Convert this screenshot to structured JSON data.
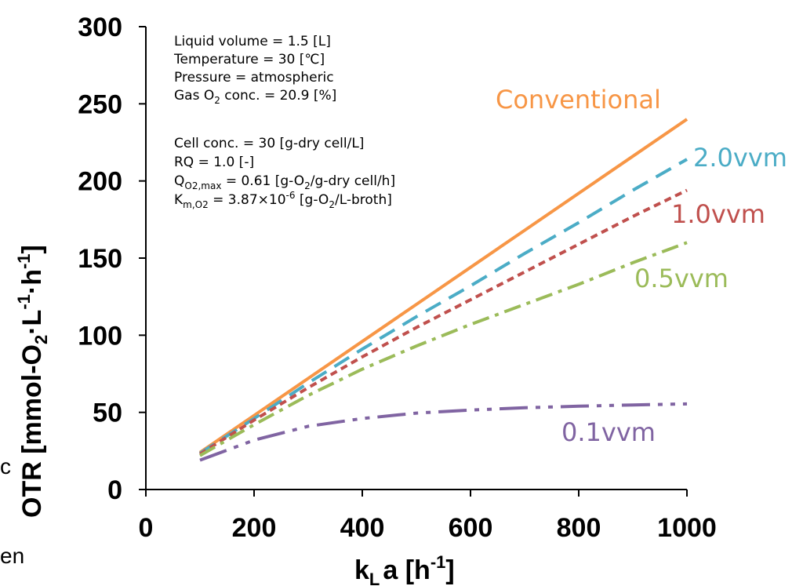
{
  "chart_data": {
    "type": "line",
    "xlabel": "k_L a [h⁻¹]",
    "xlabel_main": "k",
    "xlabel_sub": "L",
    "xlabel_rest": "a [h",
    "xlabel_sup": "-1",
    "xlabel_end": "]",
    "ylabel": "OTR [mmol-O₂·L⁻¹·h⁻¹]",
    "ylabel_parts": {
      "a": "OTR [mmol-O",
      "sub": "2",
      "b": "·L",
      "sup1": "-1",
      "c": "·h",
      "sup2": "-1",
      "d": "]"
    },
    "xlim": [
      0,
      1000
    ],
    "ylim": [
      0,
      300
    ],
    "x_ticks": [
      "0",
      "200",
      "400",
      "600",
      "800",
      "1000"
    ],
    "y_ticks": [
      "0",
      "50",
      "100",
      "150",
      "200",
      "250",
      "300"
    ],
    "grid": false,
    "series": [
      {
        "name": "Conventional",
        "color": "#f79646",
        "dash": "solid",
        "x": [
          100,
          200,
          300,
          400,
          500,
          600,
          700,
          800,
          900,
          1000
        ],
        "y": [
          24,
          48,
          72,
          96,
          120,
          144,
          168,
          192,
          216,
          240
        ]
      },
      {
        "name": "2.0vvm",
        "color": "#4bacc6",
        "dash": "dash",
        "x": [
          100,
          200,
          300,
          400,
          500,
          600,
          700,
          800,
          900,
          1000
        ],
        "y": [
          23.5,
          46,
          69,
          91,
          112,
          132,
          153,
          173,
          194,
          214
        ]
      },
      {
        "name": "1.0vvm",
        "color": "#c0504d",
        "dash": "dot",
        "x": [
          100,
          200,
          300,
          400,
          500,
          600,
          700,
          800,
          900,
          1000
        ],
        "y": [
          23,
          45,
          66,
          86,
          105,
          123,
          141,
          159,
          177,
          194
        ]
      },
      {
        "name": "0.5vvm",
        "color": "#9bbb59",
        "dash": "dashdot",
        "x": [
          100,
          200,
          300,
          400,
          500,
          600,
          700,
          800,
          900,
          1000
        ],
        "y": [
          22,
          42,
          61,
          78,
          93,
          107,
          120,
          133,
          147,
          160
        ]
      },
      {
        "name": "0.1vvm",
        "color": "#8064a2",
        "dash": "dashdotdot",
        "x": [
          100,
          200,
          300,
          400,
          500,
          600,
          700,
          800,
          900,
          1000
        ],
        "y": [
          19,
          32,
          41,
          46,
          49.5,
          51.5,
          53,
          54,
          54.8,
          55.5
        ]
      }
    ],
    "annotations": {
      "line1": "Liquid volume = 1.5 [L]",
      "line2": "Temperature = 30 [℃]",
      "line3": "Pressure  = atmospheric",
      "line4_a": "Gas O",
      "line4_sub": "2",
      "line4_b": " conc. = 20.9 [%]",
      "line5": "Cell conc. = 30 [g-dry cell/L]",
      "line6": "RQ = 1.0 [-]",
      "line7_a": "Q",
      "line7_sub": "O2,max",
      "line7_b": " = 0.61 [g-O",
      "line7_sub2": "2",
      "line7_c": "/g-dry cell/h]",
      "line8_a": "K",
      "line8_sub": "m,O2",
      "line8_b": " = 3.87×10",
      "line8_sup": "-6",
      "line8_c": " [g-O",
      "line8_sub2": "2",
      "line8_d": "/L-broth]"
    },
    "edge_fragments": [
      "c",
      "en"
    ]
  }
}
